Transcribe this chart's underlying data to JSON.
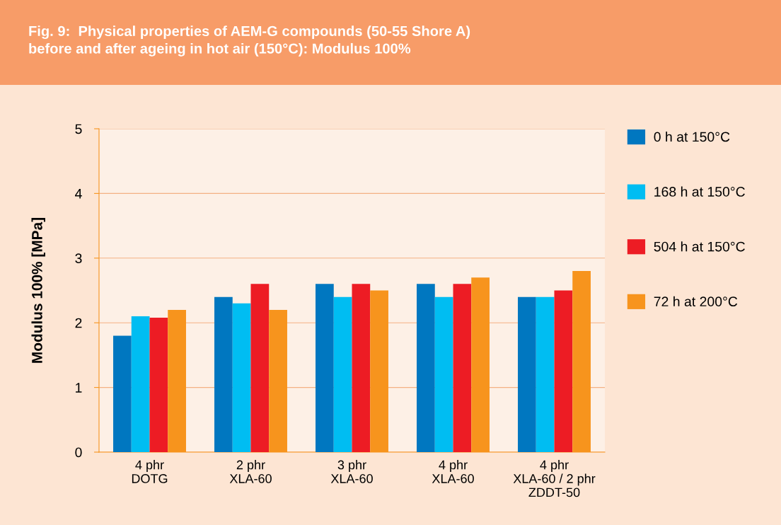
{
  "chart_data": {
    "type": "bar",
    "title": "Fig. 9:  Physical properties of AEM-G compounds (50-55 Shore A)\nbefore and after ageing in hot air (150°C): Modulus 100%",
    "ylabel": "Modulus 100% [MPa]",
    "categories": [
      "4 phr\nDOTG",
      "2 phr\nXLA-60",
      "3 phr\nXLA-60",
      "4 phr\nXLA-60",
      "4 phr\nXLA-60 / 2 phr\nZDDT-50"
    ],
    "series": [
      {
        "name": "0 h at 150°C",
        "color": "#0077c0",
        "values": [
          1.8,
          2.4,
          2.6,
          2.6,
          2.4
        ]
      },
      {
        "name": "168 h at 150°C",
        "color": "#00bdf2",
        "values": [
          2.1,
          2.3,
          2.4,
          2.4,
          2.4
        ]
      },
      {
        "name": "504 h at 150°C",
        "color": "#ed1c24",
        "values": [
          2.08,
          2.6,
          2.6,
          2.6,
          2.5
        ]
      },
      {
        "name": "72 h at 200°C",
        "color": "#f7941d",
        "values": [
          2.2,
          2.2,
          2.5,
          2.7,
          2.8
        ]
      }
    ],
    "ylim": [
      0,
      5
    ],
    "yticks": [
      0,
      1,
      2,
      3,
      4,
      5
    ],
    "grid": "y",
    "legend": "right"
  }
}
